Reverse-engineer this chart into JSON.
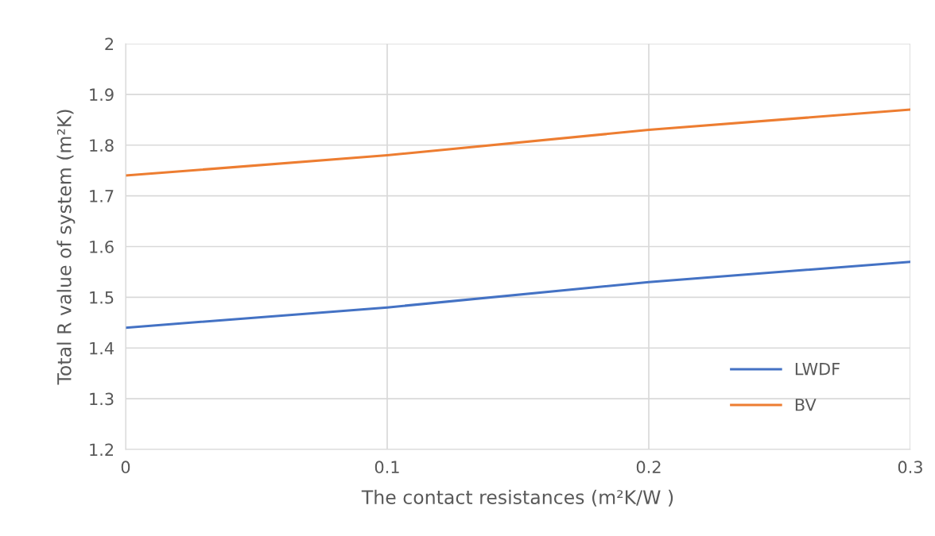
{
  "chart_data": {
    "type": "line",
    "xlabel": "The contact resistances (m²K/W )",
    "ylabel": "Total R value of system (m²K)",
    "x": [
      0,
      0.1,
      0.2,
      0.3
    ],
    "series": [
      {
        "name": "LWDF",
        "color": "#4472c4",
        "values": [
          1.44,
          1.48,
          1.53,
          1.57
        ]
      },
      {
        "name": "BV",
        "color": "#ed7d31",
        "values": [
          1.74,
          1.78,
          1.83,
          1.87
        ]
      }
    ],
    "xlim": [
      0,
      0.3
    ],
    "xticks": [
      0,
      0.1,
      0.2,
      0.3
    ],
    "ylim": [
      1.2,
      2
    ],
    "yticks": [
      1.2,
      1.3,
      1.4,
      1.5,
      1.6,
      1.7,
      1.8,
      1.9,
      2
    ],
    "grid": true,
    "legend": "bottom right",
    "marker": "none",
    "line_style": "solid"
  }
}
